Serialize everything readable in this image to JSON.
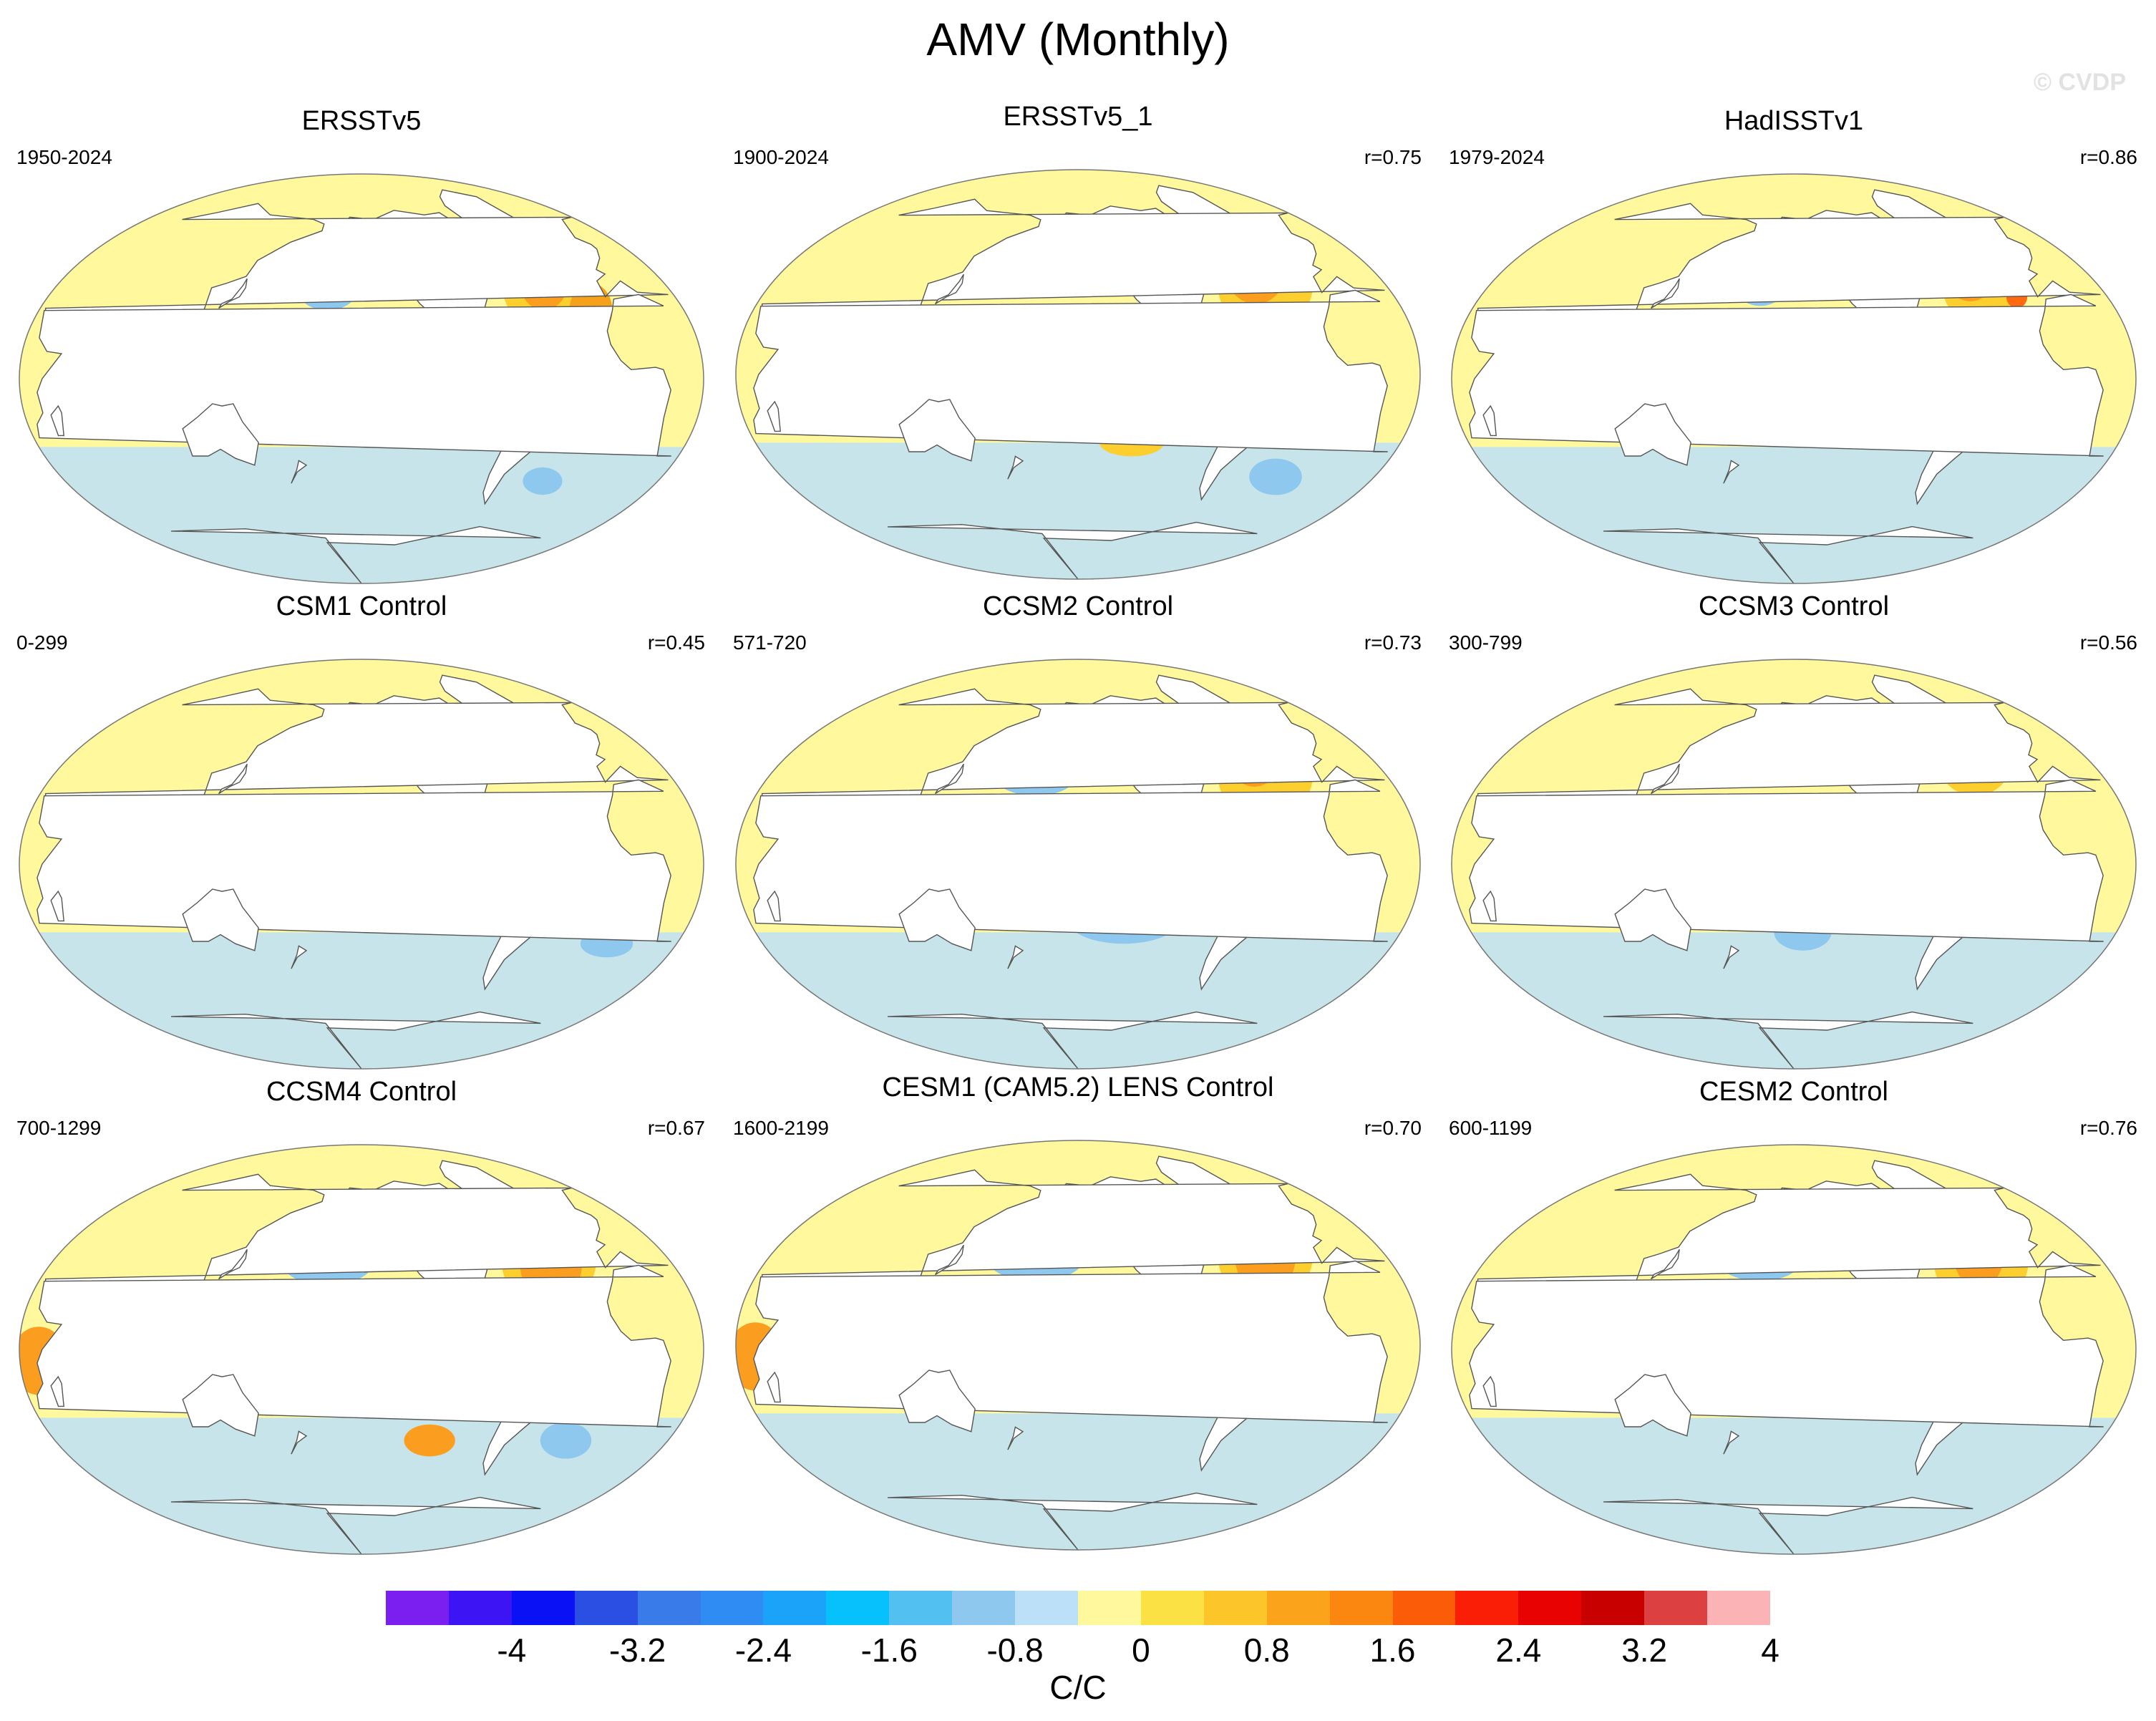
{
  "title": "AMV (Monthly)",
  "watermark": "© CVDP",
  "panels": [
    {
      "title": "ERSSTv5",
      "period": "1950-2024",
      "r": "",
      "blobs": [
        {
          "c": "#fff89c",
          "lon": -40,
          "lat": 40,
          "rx": 30,
          "ry": 22
        },
        {
          "c": "#fcce2e",
          "lon": -45,
          "lat": 40,
          "rx": 22,
          "ry": 17
        },
        {
          "c": "#fb9e1f",
          "lon": -40,
          "lat": 44,
          "rx": 15,
          "ry": 14
        },
        {
          "c": "#f6a11a",
          "lon": -22,
          "lat": 30,
          "rx": 12,
          "ry": 12
        },
        {
          "c": "#ff7e1a",
          "lon": -48,
          "lat": 48,
          "rx": 6,
          "ry": 6
        },
        {
          "c": "#8ec8ee",
          "lon": -170,
          "lat": 40,
          "rx": 18,
          "ry": 10
        },
        {
          "c": "#53b5f0",
          "lon": -168,
          "lat": 42,
          "rx": 8,
          "ry": 6
        },
        {
          "c": "#8ec8ee",
          "lon": -135,
          "lat": -18,
          "rx": 28,
          "ry": 7
        },
        {
          "c": "#fcce2e",
          "lon": -120,
          "lat": 5,
          "rx": 30,
          "ry": 5
        },
        {
          "c": "#8ec8ee",
          "lon": -40,
          "lat": -45,
          "rx": 12,
          "ry": 6
        }
      ]
    },
    {
      "title": "ERSSTv5_1",
      "period": "1900-2024",
      "r": "r=0.75",
      "blobs": [
        {
          "c": "#fcce2e",
          "lon": -40,
          "lat": 40,
          "rx": 28,
          "ry": 22
        },
        {
          "c": "#fb9e1f",
          "lon": -42,
          "lat": 45,
          "rx": 18,
          "ry": 14
        },
        {
          "c": "#fcce2e",
          "lon": -150,
          "lat": 10,
          "rx": 20,
          "ry": 6
        },
        {
          "c": "#fcce2e",
          "lon": -120,
          "lat": -30,
          "rx": 18,
          "ry": 6
        },
        {
          "c": "#8ec8ee",
          "lon": -30,
          "lat": -45,
          "rx": 16,
          "ry": 8
        }
      ]
    },
    {
      "title": "HadISSTv1",
      "period": "1979-2024",
      "r": "r=0.86",
      "blobs": [
        {
          "c": "#fff89c",
          "lon": -40,
          "lat": 40,
          "rx": 30,
          "ry": 22
        },
        {
          "c": "#fcce2e",
          "lon": -40,
          "lat": 42,
          "rx": 22,
          "ry": 18
        },
        {
          "c": "#fb9e1f",
          "lon": -42,
          "lat": 46,
          "rx": 15,
          "ry": 12
        },
        {
          "c": "#ff6a10",
          "lon": -50,
          "lat": 56,
          "rx": 6,
          "ry": 4
        },
        {
          "c": "#ff6a10",
          "lon": -22,
          "lat": 36,
          "rx": 6,
          "ry": 5
        },
        {
          "c": "#8ec8ee",
          "lon": -170,
          "lat": 42,
          "rx": 16,
          "ry": 10
        },
        {
          "c": "#53b5f0",
          "lon": -168,
          "lat": 42,
          "rx": 7,
          "ry": 5
        },
        {
          "c": "#fcce2e",
          "lon": -140,
          "lat": 5,
          "rx": 26,
          "ry": 5
        }
      ]
    },
    {
      "title": "CSM1 Control",
      "period": "0-299",
      "r": "r=0.45",
      "blobs": [
        {
          "c": "#fcce2e",
          "lon": -40,
          "lat": 48,
          "rx": 15,
          "ry": 12
        },
        {
          "c": "#e00a0a",
          "lon": -45,
          "lat": 55,
          "rx": 8,
          "ry": 7
        },
        {
          "c": "#fbb3b5",
          "lon": -45,
          "lat": 55,
          "rx": 5,
          "ry": 4
        },
        {
          "c": "#8ec8ee",
          "lon": -150,
          "lat": -20,
          "rx": 20,
          "ry": 6
        },
        {
          "c": "#8ec8ee",
          "lon": -10,
          "lat": -35,
          "rx": 15,
          "ry": 6
        }
      ]
    },
    {
      "title": "CCSM2 Control",
      "period": "571-720",
      "r": "r=0.73",
      "blobs": [
        {
          "c": "#fcce2e",
          "lon": -40,
          "lat": 40,
          "rx": 28,
          "ry": 22
        },
        {
          "c": "#fb9e1f",
          "lon": -42,
          "lat": 46,
          "rx": 15,
          "ry": 12
        },
        {
          "c": "#ff6a10",
          "lon": -44,
          "lat": 52,
          "rx": 6,
          "ry": 4
        },
        {
          "c": "#8ec8ee",
          "lon": -175,
          "lat": 40,
          "rx": 25,
          "ry": 10
        },
        {
          "c": "#53b5f0",
          "lon": -185,
          "lat": 45,
          "rx": 6,
          "ry": 5
        },
        {
          "c": "#fcce2e",
          "lon": -130,
          "lat": 5,
          "rx": 40,
          "ry": 6
        },
        {
          "c": "#fb9e1f",
          "lon": -115,
          "lat": 5,
          "rx": 18,
          "ry": 3
        },
        {
          "c": "#8ec8ee",
          "lon": -125,
          "lat": -25,
          "rx": 30,
          "ry": 10
        }
      ]
    },
    {
      "title": "CCSM3 Control",
      "period": "300-799",
      "r": "r=0.56",
      "blobs": [
        {
          "c": "#fcce2e",
          "lon": -40,
          "lat": 45,
          "rx": 22,
          "ry": 15
        },
        {
          "c": "#e00a0a",
          "lon": -45,
          "lat": 55,
          "rx": 8,
          "ry": 7
        },
        {
          "c": "#fbb3b5",
          "lon": -45,
          "lat": 55,
          "rx": 4,
          "ry": 4
        },
        {
          "c": "#53b5f0",
          "lon": -55,
          "lat": 45,
          "rx": 2,
          "ry": 2
        },
        {
          "c": "#8ec8ee",
          "lon": -100,
          "lat": -20,
          "rx": 20,
          "ry": 8
        },
        {
          "c": "#8ec8ee",
          "lon": -145,
          "lat": -30,
          "rx": 16,
          "ry": 8
        }
      ]
    },
    {
      "title": "CCSM4 Control",
      "period": "700-1299",
      "r": "r=0.67",
      "blobs": [
        {
          "c": "#fcce2e",
          "lon": -40,
          "lat": 40,
          "rx": 28,
          "ry": 22
        },
        {
          "c": "#fb9e1f",
          "lon": -40,
          "lat": 38,
          "rx": 18,
          "ry": 18
        },
        {
          "c": "#ff6a10",
          "lon": -35,
          "lat": 55,
          "rx": 6,
          "ry": 4
        },
        {
          "c": "#8ec8ee",
          "lon": -170,
          "lat": 40,
          "rx": 28,
          "ry": 12
        },
        {
          "c": "#53b5f0",
          "lon": -168,
          "lat": 40,
          "rx": 14,
          "ry": 6
        },
        {
          "c": "#3a7bea",
          "lon": -195,
          "lat": 48,
          "rx": 5,
          "ry": 3
        },
        {
          "c": "#fcce2e",
          "lon": -130,
          "lat": 5,
          "rx": 45,
          "ry": 8
        },
        {
          "c": "#fb9e1f",
          "lon": -130,
          "lat": 5,
          "rx": 30,
          "ry": 5
        },
        {
          "c": "#ff6a10",
          "lon": -130,
          "lat": 5,
          "rx": 15,
          "ry": 2
        },
        {
          "c": "#8ec8ee",
          "lon": -150,
          "lat": -20,
          "rx": 28,
          "ry": 8
        },
        {
          "c": "#fb9e1f",
          "lon": -110,
          "lat": -40,
          "rx": 15,
          "ry": 7
        },
        {
          "c": "#8ec8ee",
          "lon": -30,
          "lat": -40,
          "rx": 15,
          "ry": 8
        },
        {
          "c": "#fb9e1f",
          "lon": 40,
          "lat": -5,
          "rx": 15,
          "ry": 15
        }
      ]
    },
    {
      "title": "CESM1 (CAM5.2) LENS Control",
      "period": "1600-2199",
      "r": "r=0.70",
      "blobs": [
        {
          "c": "#fcce2e",
          "lon": -40,
          "lat": 40,
          "rx": 28,
          "ry": 22
        },
        {
          "c": "#fb9e1f",
          "lon": -40,
          "lat": 40,
          "rx": 18,
          "ry": 18
        },
        {
          "c": "#ff6a10",
          "lon": -45,
          "lat": 55,
          "rx": 6,
          "ry": 5
        },
        {
          "c": "#8ec8ee",
          "lon": -175,
          "lat": 40,
          "rx": 30,
          "ry": 12
        },
        {
          "c": "#53b5f0",
          "lon": -168,
          "lat": 40,
          "rx": 14,
          "ry": 6
        },
        {
          "c": "#3a7bea",
          "lon": -195,
          "lat": 48,
          "rx": 5,
          "ry": 3
        },
        {
          "c": "#fcce2e",
          "lon": -130,
          "lat": 5,
          "rx": 45,
          "ry": 8
        },
        {
          "c": "#fb9e1f",
          "lon": -130,
          "lat": 5,
          "rx": 30,
          "ry": 5
        },
        {
          "c": "#8ec8ee",
          "lon": -140,
          "lat": -20,
          "rx": 30,
          "ry": 8
        },
        {
          "c": "#fb9e1f",
          "lon": 40,
          "lat": -5,
          "rx": 15,
          "ry": 15
        }
      ]
    },
    {
      "title": "CESM2 Control",
      "period": "600-1199",
      "r": "r=0.76",
      "blobs": [
        {
          "c": "#fcce2e",
          "lon": -40,
          "lat": 40,
          "rx": 28,
          "ry": 22
        },
        {
          "c": "#fb9e1f",
          "lon": -40,
          "lat": 42,
          "rx": 15,
          "ry": 15
        },
        {
          "c": "#ff6a10",
          "lon": -42,
          "lat": 55,
          "rx": 6,
          "ry": 5
        },
        {
          "c": "#8ec8ee",
          "lon": -170,
          "lat": 40,
          "rx": 25,
          "ry": 10
        },
        {
          "c": "#53b5f0",
          "lon": -168,
          "lat": 40,
          "rx": 10,
          "ry": 5
        },
        {
          "c": "#fcce2e",
          "lon": -130,
          "lat": 5,
          "rx": 45,
          "ry": 7
        },
        {
          "c": "#fb9e1f",
          "lon": -120,
          "lat": 5,
          "rx": 20,
          "ry": 4
        },
        {
          "c": "#8ec8ee",
          "lon": -135,
          "lat": -20,
          "rx": 30,
          "ry": 8
        }
      ]
    }
  ],
  "colorbar": {
    "colors": [
      "#7a1ff0",
      "#3d15f5",
      "#0a12f5",
      "#2c4fe3",
      "#3a7bea",
      "#2f8cf3",
      "#1aa3f8",
      "#06c1fb",
      "#53c0f2",
      "#8ec8ee",
      "#bce0f7",
      "#fff89c",
      "#fce145",
      "#fcc52a",
      "#fba41b",
      "#fb8710",
      "#fa5c08",
      "#fa1e06",
      "#e80302",
      "#c90000",
      "#dd4040",
      "#fbb3b5"
    ],
    "labels": [
      "-4",
      "-3.2",
      "-2.4",
      "-1.6",
      "-0.8",
      "0",
      "0.8",
      "1.6",
      "2.4",
      "3.2",
      "4"
    ],
    "units": "C/C"
  }
}
